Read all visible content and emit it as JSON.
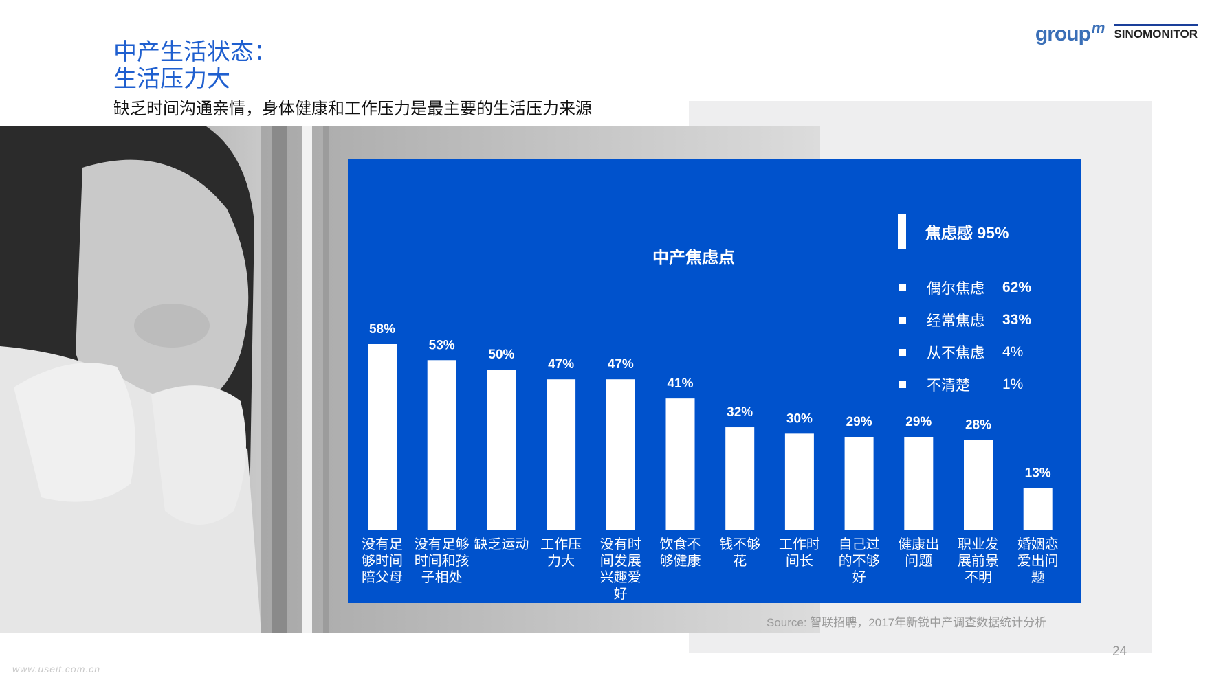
{
  "header": {
    "title_line1": "中产生活状态：",
    "title_line2": "生活压力大",
    "subtitle": "缺乏时间沟通亲情，身体健康和工作压力是最主要的生活压力来源"
  },
  "logos": {
    "groupm": "group",
    "groupm_sup": "m",
    "sino": "SINOMONITOR"
  },
  "colors": {
    "accent": "#1f5fcf",
    "chart_bg": "#0052cc",
    "bar": "#ffffff"
  },
  "chart_data": {
    "type": "bar",
    "title": "中产焦虑点",
    "categories": [
      "没有足够时间陪父母",
      "没有足够时间和孩子相处",
      "缺乏运动",
      "工作压力大",
      "没有时间发展兴趣爱好",
      "饮食不够健康",
      "钱不够花",
      "工作时间长",
      "自己过的不够好",
      "健康出问题",
      "职业发展前景不明",
      "婚姻恋爱出问题"
    ],
    "category_lines": [
      [
        "没有足",
        "够时间",
        "陪父母"
      ],
      [
        "没有足够",
        "时间和孩",
        "子相处"
      ],
      [
        "缺乏运动"
      ],
      [
        "工作压",
        "力大"
      ],
      [
        "没有时",
        "间发展",
        "兴趣爱",
        "好"
      ],
      [
        "饮食不",
        "够健康"
      ],
      [
        "钱不够",
        "花"
      ],
      [
        "工作时",
        "间长"
      ],
      [
        "自己过",
        "的不够",
        "好"
      ],
      [
        "健康出",
        "问题"
      ],
      [
        "职业发",
        "展前景",
        "不明"
      ],
      [
        "婚姻恋",
        "爱出问",
        "题"
      ]
    ],
    "values": [
      58,
      53,
      50,
      47,
      47,
      41,
      32,
      30,
      29,
      29,
      28,
      13
    ],
    "value_labels": [
      "58%",
      "53%",
      "50%",
      "47%",
      "47%",
      "41%",
      "32%",
      "30%",
      "29%",
      "29%",
      "28%",
      "13%"
    ],
    "ylim": [
      0,
      58
    ],
    "grid": false,
    "legend": {
      "placement": "top-right",
      "header": "焦虑感 95%",
      "items": [
        {
          "name": "偶尔焦虑",
          "value": "62%"
        },
        {
          "name": "经常焦虑",
          "value": "33%"
        },
        {
          "name": "从不焦虑",
          "value": "4%"
        },
        {
          "name": "不清楚",
          "value": "1%"
        }
      ]
    }
  },
  "footer": {
    "source": "Source: 智联招聘，2017年新锐中产调查数据统计分析",
    "page_number": "24",
    "watermark": "www.useit.com.cn"
  }
}
